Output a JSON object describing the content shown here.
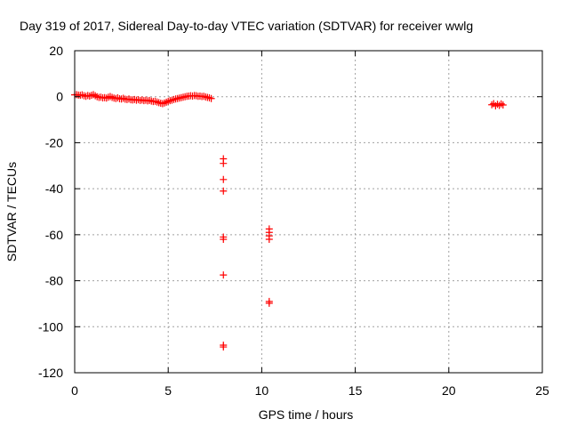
{
  "chart_data": {
    "type": "scatter",
    "title": "Day 319 of 2017, Sidereal Day-to-day VTEC variation (SDTVAR) for receiver wwlg",
    "xlabel": "GPS time / hours",
    "ylabel": "SDTVAR / TECUs",
    "xlim": [
      0,
      25
    ],
    "ylim": [
      -120,
      20
    ],
    "xticks": [
      0,
      5,
      10,
      15,
      20,
      25
    ],
    "yticks": [
      20,
      0,
      -20,
      -40,
      -60,
      -80,
      -100,
      -120
    ],
    "grid": true,
    "marker": "plus",
    "colors": {
      "points": "#ff0000",
      "grid": "#a0a0a0",
      "frame": "#000000"
    },
    "series": [
      {
        "name": "SDTVAR",
        "points": [
          [
            0.0,
            0.8
          ],
          [
            0.1,
            0.9
          ],
          [
            0.2,
            0.7
          ],
          [
            0.3,
            0.6
          ],
          [
            0.4,
            0.8
          ],
          [
            0.5,
            0.4
          ],
          [
            0.6,
            0.2
          ],
          [
            0.7,
            0.5
          ],
          [
            0.8,
            0.3
          ],
          [
            0.9,
            0.6
          ],
          [
            1.0,
            0.9
          ],
          [
            1.1,
            0.4
          ],
          [
            1.2,
            0.0
          ],
          [
            1.3,
            -0.3
          ],
          [
            1.4,
            -0.2
          ],
          [
            1.5,
            -0.5
          ],
          [
            1.6,
            -0.4
          ],
          [
            1.7,
            -0.6
          ],
          [
            1.8,
            -0.2
          ],
          [
            1.9,
            0.1
          ],
          [
            2.0,
            -0.3
          ],
          [
            2.1,
            -0.6
          ],
          [
            2.2,
            -0.8
          ],
          [
            2.3,
            -0.5
          ],
          [
            2.4,
            -0.9
          ],
          [
            2.5,
            -1.0
          ],
          [
            2.6,
            -0.7
          ],
          [
            2.7,
            -1.1
          ],
          [
            2.8,
            -1.2
          ],
          [
            2.9,
            -1.0
          ],
          [
            3.0,
            -1.3
          ],
          [
            3.1,
            -1.4
          ],
          [
            3.2,
            -1.2
          ],
          [
            3.3,
            -1.5
          ],
          [
            3.4,
            -1.3
          ],
          [
            3.5,
            -1.6
          ],
          [
            3.6,
            -1.4
          ],
          [
            3.7,
            -1.7
          ],
          [
            3.8,
            -1.5
          ],
          [
            3.9,
            -1.8
          ],
          [
            4.0,
            -1.6
          ],
          [
            4.1,
            -1.9
          ],
          [
            4.2,
            -2.1
          ],
          [
            4.3,
            -2.0
          ],
          [
            4.4,
            -2.3
          ],
          [
            4.5,
            -2.6
          ],
          [
            4.6,
            -2.8
          ],
          [
            4.7,
            -3.0
          ],
          [
            4.8,
            -2.7
          ],
          [
            4.9,
            -2.4
          ],
          [
            5.0,
            -2.0
          ],
          [
            5.1,
            -1.7
          ],
          [
            5.2,
            -1.5
          ],
          [
            5.3,
            -1.2
          ],
          [
            5.4,
            -1.0
          ],
          [
            5.5,
            -0.8
          ],
          [
            5.6,
            -0.6
          ],
          [
            5.7,
            -0.4
          ],
          [
            5.8,
            -0.2
          ],
          [
            5.9,
            0.0
          ],
          [
            6.0,
            0.2
          ],
          [
            6.1,
            0.3
          ],
          [
            6.2,
            0.4
          ],
          [
            6.3,
            0.3
          ],
          [
            6.4,
            0.5
          ],
          [
            6.5,
            0.4
          ],
          [
            6.6,
            0.2
          ],
          [
            6.7,
            0.3
          ],
          [
            6.8,
            0.1
          ],
          [
            6.9,
            0.2
          ],
          [
            7.0,
            -0.1
          ],
          [
            7.1,
            -0.3
          ],
          [
            7.2,
            -0.5
          ],
          [
            7.3,
            -0.8
          ],
          [
            7.95,
            -27.0
          ],
          [
            7.95,
            -29.0
          ],
          [
            7.95,
            -36.0
          ],
          [
            7.95,
            -41.0
          ],
          [
            7.95,
            -61.0
          ],
          [
            7.95,
            -62.0
          ],
          [
            7.95,
            -77.5
          ],
          [
            7.95,
            -108.0
          ],
          [
            7.95,
            -108.8
          ],
          [
            10.4,
            -57.5
          ],
          [
            10.4,
            -59.0
          ],
          [
            10.4,
            -60.5
          ],
          [
            10.4,
            -62.0
          ],
          [
            10.4,
            -89.0
          ],
          [
            10.4,
            -89.8
          ],
          [
            22.3,
            -3.5
          ],
          [
            22.4,
            -3.0
          ],
          [
            22.5,
            -4.0
          ],
          [
            22.6,
            -3.3
          ],
          [
            22.7,
            -3.8
          ],
          [
            22.8,
            -3.1
          ],
          [
            22.9,
            -3.6
          ]
        ]
      }
    ]
  }
}
